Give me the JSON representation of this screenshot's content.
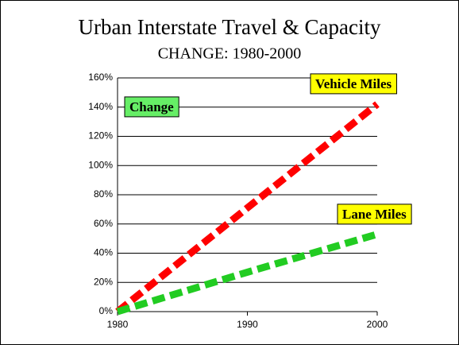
{
  "chart_data": {
    "type": "line",
    "title": "Urban Interstate Travel & Capacity",
    "subtitle": "CHANGE: 1980-2000",
    "annotation": "Change",
    "x": [
      1980,
      1990,
      2000
    ],
    "xlim": [
      1980,
      2000
    ],
    "xticks": [
      1980,
      1990,
      2000
    ],
    "ylim": [
      0,
      160
    ],
    "yticks": [
      {
        "value": 0,
        "label": "0%"
      },
      {
        "value": 20,
        "label": "20%"
      },
      {
        "value": 40,
        "label": "40%"
      },
      {
        "value": 60,
        "label": "60%"
      },
      {
        "value": 80,
        "label": "80%"
      },
      {
        "value": 100,
        "label": "100%"
      },
      {
        "value": 120,
        "label": "120%"
      },
      {
        "value": 140,
        "label": "140%"
      },
      {
        "value": 160,
        "label": "160%"
      }
    ],
    "grid": true,
    "series": [
      {
        "name": "Vehicle Miles",
        "color": "#ff0000",
        "values": [
          0,
          71,
          142
        ]
      },
      {
        "name": "Lane Miles",
        "color": "#22cc22",
        "values": [
          0,
          27,
          53
        ]
      }
    ]
  }
}
